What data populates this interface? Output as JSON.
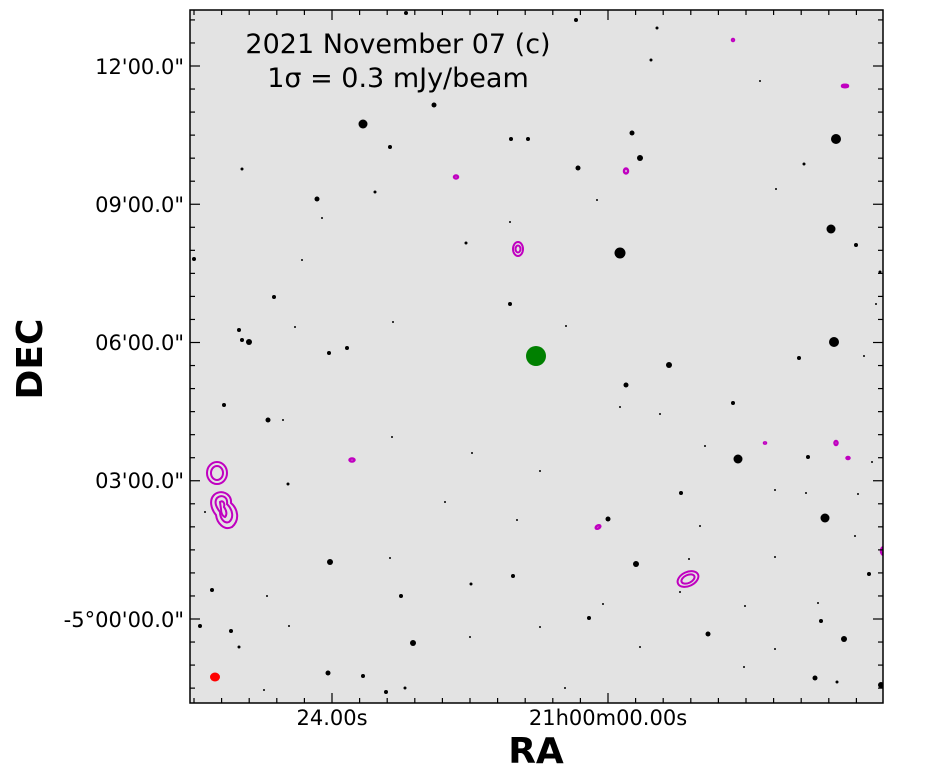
{
  "figure": {
    "title_line1": "2021 November 07 (c)",
    "title_line2": "1σ = 0.3 mJy/beam",
    "xlabel": "RA",
    "ylabel": "DEC",
    "y_ticks": [
      "12'00.0\"",
      "09'00.0\"",
      "06'00.0\"",
      "03'00.0\"",
      "-5°00'00.0\""
    ],
    "x_ticks": [
      "24.00s",
      "21h00m00.00s"
    ]
  },
  "colors": {
    "sky_background": "#e3e3e3",
    "stars": "#000000",
    "contours": "#c000c0",
    "target_marker": "#008000",
    "beam_marker": "#ff0000"
  }
}
